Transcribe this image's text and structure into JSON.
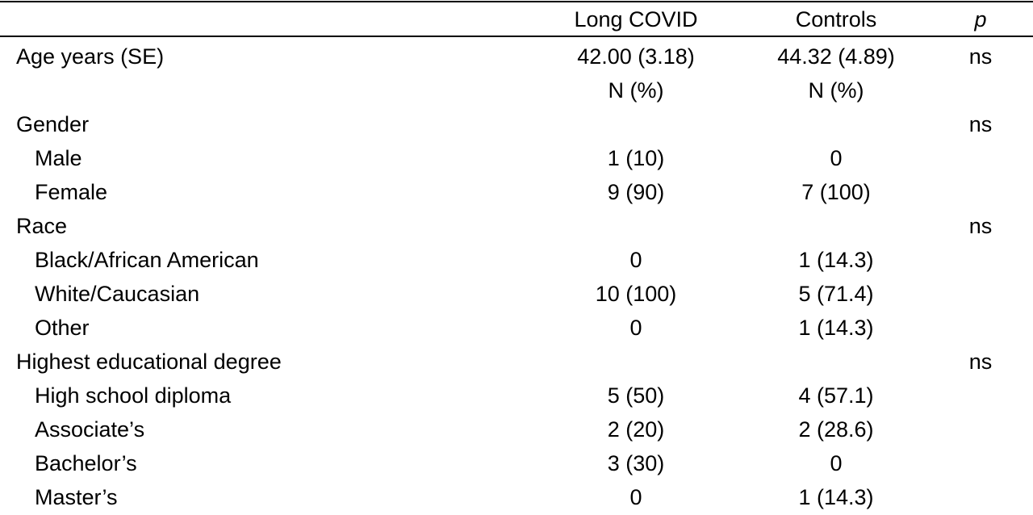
{
  "table": {
    "header": {
      "col_a": "Long COVID",
      "col_b": "Controls",
      "col_p": "p"
    },
    "rows": [
      {
        "label": "Age years (SE)",
        "a": "42.00 (3.18)",
        "b": "44.32 (4.89)",
        "p": "ns"
      },
      {
        "label": "",
        "a": "N (%)",
        "b": "N (%)",
        "p": ""
      },
      {
        "label": "Gender",
        "a": "",
        "b": "",
        "p": "ns"
      },
      {
        "label": "Male",
        "a": "1 (10)",
        "b": "0",
        "p": ""
      },
      {
        "label": "Female",
        "a": "9 (90)",
        "b": "7 (100)",
        "p": ""
      },
      {
        "label": "Race",
        "a": "",
        "b": "",
        "p": "ns"
      },
      {
        "label": "Black/African American",
        "a": "0",
        "b": "1 (14.3)",
        "p": ""
      },
      {
        "label": "White/Caucasian",
        "a": "10 (100)",
        "b": "5 (71.4)",
        "p": ""
      },
      {
        "label": "Other",
        "a": "0",
        "b": "1 (14.3)",
        "p": ""
      },
      {
        "label": "Highest educational degree",
        "a": "",
        "b": "",
        "p": "ns"
      },
      {
        "label": "High school diploma",
        "a": "5 (50)",
        "b": "4 (57.1)",
        "p": ""
      },
      {
        "label": "Associate’s",
        "a": "2 (20)",
        "b": "2 (28.6)",
        "p": ""
      },
      {
        "label": "Bachelor’s",
        "a": "3 (30)",
        "b": "0",
        "p": ""
      },
      {
        "label": "Master’s",
        "a": "0",
        "b": "1 (14.3)",
        "p": ""
      }
    ]
  }
}
